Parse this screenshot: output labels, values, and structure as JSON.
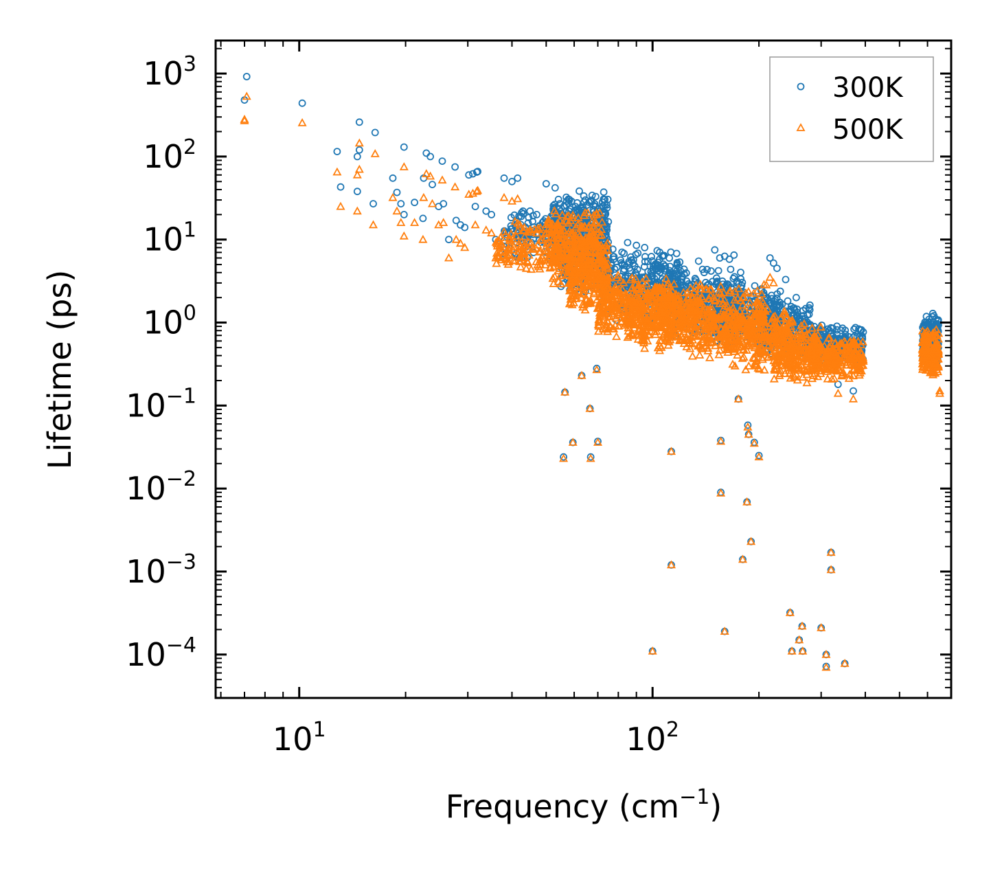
{
  "chart_data": {
    "type": "scatter",
    "xscale": "log",
    "yscale": "log",
    "xlabel": "Frequency (cm",
    "xlabel_sup": "−1",
    "xlabel_end": ")",
    "ylabel": "Lifetime (ps)",
    "xlim": [
      5.8,
      700
    ],
    "ylim": [
      3e-05,
      2500
    ],
    "x_ticks": [
      {
        "value": 10,
        "base": "10",
        "exp": "1"
      },
      {
        "value": 100,
        "base": "10",
        "exp": "2"
      }
    ],
    "y_ticks": [
      {
        "value": 1000,
        "base": "10",
        "exp": "3"
      },
      {
        "value": 100,
        "base": "10",
        "exp": "2"
      },
      {
        "value": 10,
        "base": "10",
        "exp": "1"
      },
      {
        "value": 1,
        "base": "10",
        "exp": "0"
      },
      {
        "value": 0.1,
        "base": "10",
        "exp": "−1"
      },
      {
        "value": 0.01,
        "base": "10",
        "exp": "−2"
      },
      {
        "value": 0.001,
        "base": "10",
        "exp": "−3"
      },
      {
        "value": 0.0001,
        "base": "10",
        "exp": "−4"
      }
    ],
    "legend_position": "top-right",
    "series": [
      {
        "name": "300K",
        "color": "#1f77b4",
        "marker": "circle",
        "points": [
          [
            7.0,
            480
          ],
          [
            7.1,
            920
          ],
          [
            10.2,
            440
          ],
          [
            12.8,
            115
          ],
          [
            13.1,
            43
          ],
          [
            14.8,
            260
          ],
          [
            14.6,
            100
          ],
          [
            14.8,
            120
          ],
          [
            14.6,
            38
          ],
          [
            16.4,
            195
          ],
          [
            16.2,
            27
          ],
          [
            18.4,
            55
          ],
          [
            18.9,
            37
          ],
          [
            19.4,
            27
          ],
          [
            19.8,
            130
          ],
          [
            19.8,
            20
          ],
          [
            21.2,
            28
          ],
          [
            22.4,
            18
          ],
          [
            22.9,
            110
          ],
          [
            22.5,
            55
          ],
          [
            23.5,
            100
          ],
          [
            23.8,
            46
          ],
          [
            24.8,
            25
          ],
          [
            25.4,
            88
          ],
          [
            25.6,
            27
          ],
          [
            26.5,
            10
          ],
          [
            27.6,
            75
          ],
          [
            27.8,
            17
          ],
          [
            28.6,
            15
          ],
          [
            29.4,
            14
          ],
          [
            30.2,
            60
          ],
          [
            31.0,
            62
          ],
          [
            31.8,
            65
          ],
          [
            32.0,
            66
          ],
          [
            31.5,
            25
          ],
          [
            33.8,
            22
          ],
          [
            35.0,
            20
          ],
          [
            36.0,
            10
          ],
          [
            38.0,
            55
          ],
          [
            40.0,
            50
          ],
          [
            41.5,
            55
          ],
          [
            43.0,
            22
          ],
          [
            45.0,
            22
          ],
          [
            47.0,
            20
          ],
          [
            50.0,
            47
          ],
          [
            53.0,
            42
          ],
          [
            55.0,
            22
          ],
          [
            56.5,
            0.145
          ],
          [
            59.5,
            0.036
          ],
          [
            56.0,
            0.024
          ],
          [
            63.0,
            0.23
          ],
          [
            66.5,
            0.092
          ],
          [
            66.8,
            0.024
          ],
          [
            69.5,
            0.28
          ],
          [
            70.0,
            0.037
          ],
          [
            85.0,
            9.2
          ],
          [
            90.0,
            8.5
          ],
          [
            95.0,
            8.0
          ],
          [
            100.0,
            0.00011
          ],
          [
            113.0,
            0.028
          ],
          [
            113.0,
            0.0012
          ],
          [
            135.0,
            5.5
          ],
          [
            150.0,
            7.5
          ],
          [
            155.0,
            6.0
          ],
          [
            160.0,
            6.3
          ],
          [
            165.0,
            5.8
          ],
          [
            170.0,
            6.5
          ],
          [
            156.0,
            0.038
          ],
          [
            156.0,
            0.009
          ],
          [
            160.0,
            0.00019
          ],
          [
            175.0,
            0.12
          ],
          [
            180.0,
            0.0014
          ],
          [
            186.0,
            0.058
          ],
          [
            187.0,
            0.045
          ],
          [
            185.0,
            0.0069
          ],
          [
            190.0,
            0.0023
          ],
          [
            194.0,
            0.036
          ],
          [
            200.0,
            0.025
          ],
          [
            215.0,
            6.0
          ],
          [
            220.0,
            5.2
          ],
          [
            225.0,
            4.5
          ],
          [
            238.0,
            3.3
          ],
          [
            245.0,
            0.00032
          ],
          [
            248.0,
            0.00011
          ],
          [
            255.0,
            2.0
          ],
          [
            260.0,
            0.00015
          ],
          [
            265.0,
            0.00022
          ],
          [
            266.0,
            0.00011
          ],
          [
            300.0,
            0.00021
          ],
          [
            310.0,
            0.0001
          ],
          [
            310.0,
            7.2e-05
          ],
          [
            320.0,
            0.0017
          ],
          [
            320.0,
            0.00105
          ],
          [
            350.0,
            7.8e-05
          ],
          [
            335.0,
            0.18
          ],
          [
            370.0,
            0.15
          ]
        ],
        "bands": [
          {
            "x": [
              38,
              56
            ],
            "y": [
              5,
              28
            ],
            "n": 130
          },
          {
            "x": [
              52,
              75
            ],
            "y": [
              6,
              40
            ],
            "n": 260
          },
          {
            "x": [
              55,
              75
            ],
            "y": [
              2.2,
              20
            ],
            "n": 260
          },
          {
            "x": [
              72,
              120
            ],
            "y": [
              1.0,
              8
            ],
            "n": 320
          },
          {
            "x": [
              110,
              180
            ],
            "y": [
              0.6,
              5
            ],
            "n": 320
          },
          {
            "x": [
              150,
              230
            ],
            "y": [
              0.5,
              3
            ],
            "n": 260
          },
          {
            "x": [
              200,
              280
            ],
            "y": [
              0.35,
              2.0
            ],
            "n": 220
          },
          {
            "x": [
              270,
              395
            ],
            "y": [
              0.3,
              0.95
            ],
            "n": 260
          },
          {
            "x": [
              580,
              645
            ],
            "y": [
              0.3,
              1.35
            ],
            "n": 200
          }
        ]
      },
      {
        "name": "500K",
        "color": "#ff7f0e",
        "marker": "triangle",
        "points": [
          [
            7.0,
            280
          ],
          [
            7.0,
            270
          ],
          [
            7.1,
            530
          ],
          [
            10.2,
            255
          ],
          [
            12.8,
            65
          ],
          [
            13.1,
            25
          ],
          [
            14.6,
            60
          ],
          [
            14.8,
            70
          ],
          [
            14.8,
            145
          ],
          [
            14.6,
            22
          ],
          [
            16.4,
            108
          ],
          [
            16.2,
            15
          ],
          [
            18.4,
            32
          ],
          [
            18.9,
            22
          ],
          [
            19.4,
            16
          ],
          [
            19.8,
            75
          ],
          [
            19.8,
            11
          ],
          [
            21.2,
            16
          ],
          [
            22.4,
            10
          ],
          [
            22.9,
            62
          ],
          [
            22.5,
            32
          ],
          [
            23.5,
            58
          ],
          [
            23.8,
            27
          ],
          [
            24.8,
            15
          ],
          [
            25.4,
            52
          ],
          [
            25.6,
            16
          ],
          [
            26.5,
            6
          ],
          [
            27.6,
            43
          ],
          [
            27.8,
            10
          ],
          [
            28.6,
            9
          ],
          [
            29.4,
            8
          ],
          [
            30.2,
            35
          ],
          [
            31.0,
            36
          ],
          [
            31.8,
            38
          ],
          [
            32.0,
            39
          ],
          [
            31.5,
            15
          ],
          [
            33.8,
            13
          ],
          [
            35.0,
            12
          ],
          [
            36.0,
            6
          ],
          [
            38.0,
            32
          ],
          [
            40.0,
            29
          ],
          [
            41.5,
            31
          ],
          [
            43.0,
            13
          ],
          [
            45.0,
            13
          ],
          [
            56.5,
            0.145
          ],
          [
            59.5,
            0.036
          ],
          [
            56.0,
            0.023
          ],
          [
            63.0,
            0.23
          ],
          [
            66.5,
            0.092
          ],
          [
            66.8,
            0.023
          ],
          [
            69.5,
            0.27
          ],
          [
            70.0,
            0.036
          ],
          [
            100.0,
            0.00011
          ],
          [
            113.0,
            0.028
          ],
          [
            113.0,
            0.0012
          ],
          [
            156.0,
            0.037
          ],
          [
            156.0,
            0.0088
          ],
          [
            160.0,
            0.00019
          ],
          [
            175.0,
            0.12
          ],
          [
            180.0,
            0.0014
          ],
          [
            186.0,
            0.055
          ],
          [
            187.0,
            0.045
          ],
          [
            185.0,
            0.0069
          ],
          [
            190.0,
            0.0023
          ],
          [
            194.0,
            0.035
          ],
          [
            200.0,
            0.024
          ],
          [
            215.0,
            3.5
          ],
          [
            220.0,
            3.0
          ],
          [
            245.0,
            0.00032
          ],
          [
            248.0,
            0.00011
          ],
          [
            260.0,
            0.00015
          ],
          [
            265.0,
            0.00022
          ],
          [
            266.0,
            0.00011
          ],
          [
            300.0,
            0.00021
          ],
          [
            310.0,
            0.0001
          ],
          [
            310.0,
            7e-05
          ],
          [
            320.0,
            0.0017
          ],
          [
            320.0,
            0.00105
          ],
          [
            350.0,
            7.8e-05
          ],
          [
            335.0,
            0.14
          ],
          [
            370.0,
            0.12
          ],
          [
            650.0,
            0.15
          ],
          [
            650.0,
            0.14
          ]
        ],
        "bands": [
          {
            "x": [
              36,
              55
            ],
            "y": [
              3.5,
              18
            ],
            "n": 130
          },
          {
            "x": [
              50,
              72
            ],
            "y": [
              2.5,
              25
            ],
            "n": 280
          },
          {
            "x": [
              58,
              75
            ],
            "y": [
              1.2,
              12
            ],
            "n": 240
          },
          {
            "x": [
              70,
              115
            ],
            "y": [
              0.6,
              4
            ],
            "n": 320
          },
          {
            "x": [
              85,
              150
            ],
            "y": [
              0.4,
              3
            ],
            "n": 280
          },
          {
            "x": [
              110,
              210
            ],
            "y": [
              0.35,
              3.5
            ],
            "n": 320
          },
          {
            "x": [
              160,
              250
            ],
            "y": [
              0.25,
              1.8
            ],
            "n": 260
          },
          {
            "x": [
              220,
              300
            ],
            "y": [
              0.18,
              1.0
            ],
            "n": 220
          },
          {
            "x": [
              280,
              395
            ],
            "y": [
              0.2,
              0.7
            ],
            "n": 240
          },
          {
            "x": [
              580,
              645
            ],
            "y": [
              0.22,
              0.85
            ],
            "n": 200
          }
        ]
      }
    ]
  }
}
